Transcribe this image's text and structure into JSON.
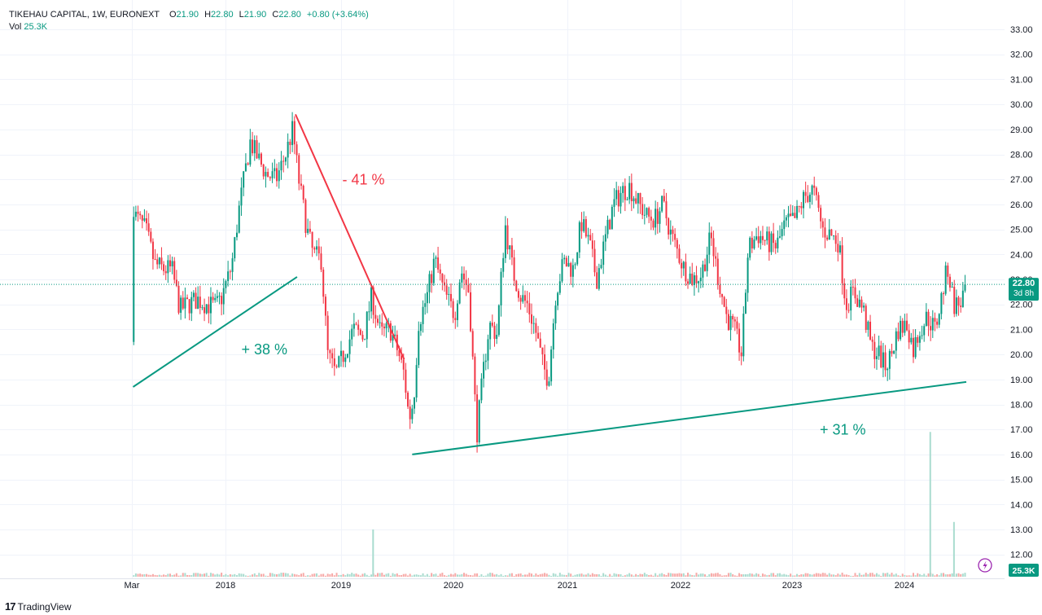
{
  "header": {
    "symbol": "TIKEHAU CAPITAL, 1W, EURONEXT",
    "o_label": "O",
    "o": "21.90",
    "h_label": "H",
    "h": "22.80",
    "l_label": "L",
    "l": "21.90",
    "c_label": "C",
    "c": "22.80",
    "change": "+0.80 (+3.64%)",
    "vol_label": "Vol",
    "vol": "25.3K"
  },
  "price_badge": {
    "price": "22.80",
    "countdown": "3d 8h"
  },
  "volume_badge": "25.3K",
  "footer": {
    "logo": "17",
    "brand": "TradingView"
  },
  "colors": {
    "up": "#089981",
    "down": "#f23645",
    "up_vol": "#a9dccf",
    "down_vol": "#f7a9a7",
    "grid": "#f0f3fa",
    "axis_text": "#131722",
    "lightning": "#9c27b0"
  },
  "chart_data": {
    "type": "candlestick",
    "interval": "1W",
    "ylim": [
      11.5,
      33.3
    ],
    "y_ticks": [
      "33.00",
      "32.00",
      "31.00",
      "30.00",
      "29.00",
      "28.00",
      "27.00",
      "26.00",
      "25.00",
      "24.00",
      "23.00",
      "22.00",
      "21.00",
      "20.00",
      "19.00",
      "18.00",
      "17.00",
      "16.00",
      "15.00",
      "14.00",
      "13.00",
      "12.00"
    ],
    "x_ticks": [
      "Mar",
      "2018",
      "2019",
      "2020",
      "2021",
      "2022",
      "2023",
      "2024"
    ],
    "x_tick_dates": [
      "2017-03-01",
      "2018-01-01",
      "2019-01-01",
      "2020-01-01",
      "2021-01-01",
      "2022-01-01",
      "2023-01-01",
      "2024-01-01"
    ],
    "x_range": [
      "2017-03-01",
      "2024-08-01"
    ],
    "last_close": 22.8,
    "price_path": [
      [
        "2017-03-07",
        20.5
      ],
      [
        "2017-03-14",
        25.5
      ],
      [
        "2017-04-15",
        25.0
      ],
      [
        "2017-05-15",
        23.6
      ],
      [
        "2017-06-15",
        23.4
      ],
      [
        "2017-07-10",
        23.4
      ],
      [
        "2017-08-05",
        21.8
      ],
      [
        "2017-09-01",
        22.0
      ],
      [
        "2017-10-01",
        22.2
      ],
      [
        "2017-11-01",
        22.0
      ],
      [
        "2017-12-01",
        21.9
      ],
      [
        "2017-12-20",
        22.3
      ],
      [
        "2018-01-20",
        23.5
      ],
      [
        "2018-02-15",
        26.0
      ],
      [
        "2018-03-20",
        28.5
      ],
      [
        "2018-04-15",
        27.8
      ],
      [
        "2018-05-10",
        27.2
      ],
      [
        "2018-06-10",
        27.0
      ],
      [
        "2018-07-10",
        28.0
      ],
      [
        "2018-08-01",
        29.0
      ],
      [
        "2018-08-20",
        27.0
      ],
      [
        "2018-09-15",
        25.0
      ],
      [
        "2018-10-05",
        24.0
      ],
      [
        "2018-10-30",
        23.8
      ],
      [
        "2018-11-20",
        20.0
      ],
      [
        "2018-12-15",
        19.2
      ],
      [
        "2019-01-15",
        20.2
      ],
      [
        "2019-02-10",
        21.0
      ],
      [
        "2019-03-15",
        20.7
      ],
      [
        "2019-04-10",
        22.3
      ],
      [
        "2019-05-10",
        20.8
      ],
      [
        "2019-06-10",
        21.0
      ],
      [
        "2019-07-05",
        20.1
      ],
      [
        "2019-07-25",
        19.2
      ],
      [
        "2019-08-10",
        17.4
      ],
      [
        "2019-08-25",
        18.2
      ],
      [
        "2019-09-10",
        21.3
      ],
      [
        "2019-10-05",
        22.2
      ],
      [
        "2019-11-01",
        23.8
      ],
      [
        "2019-12-01",
        22.5
      ],
      [
        "2020-01-05",
        21.6
      ],
      [
        "2020-01-25",
        23.4
      ],
      [
        "2020-02-20",
        22.5
      ],
      [
        "2020-03-16",
        16.8
      ],
      [
        "2020-04-05",
        19.2
      ],
      [
        "2020-04-25",
        21.2
      ],
      [
        "2020-05-20",
        20.8
      ],
      [
        "2020-06-15",
        25.2
      ],
      [
        "2020-07-10",
        23.3
      ],
      [
        "2020-08-05",
        22.3
      ],
      [
        "2020-08-25",
        22.0
      ],
      [
        "2020-09-20",
        21.0
      ],
      [
        "2020-10-15",
        19.5
      ],
      [
        "2020-11-01",
        19.0
      ],
      [
        "2020-11-25",
        22.5
      ],
      [
        "2020-12-20",
        23.7
      ],
      [
        "2021-01-20",
        23.4
      ],
      [
        "2021-02-15",
        25.3
      ],
      [
        "2021-03-15",
        24.3
      ],
      [
        "2021-04-05",
        23.0
      ],
      [
        "2021-05-01",
        24.5
      ],
      [
        "2021-05-30",
        26.0
      ],
      [
        "2021-06-25",
        26.5
      ],
      [
        "2021-07-20",
        26.7
      ],
      [
        "2021-08-20",
        26.0
      ],
      [
        "2021-09-15",
        25.5
      ],
      [
        "2021-10-10",
        25.4
      ],
      [
        "2021-11-05",
        26.0
      ],
      [
        "2021-12-01",
        24.8
      ],
      [
        "2022-01-10",
        23.5
      ],
      [
        "2022-02-10",
        23.0
      ],
      [
        "2022-03-10",
        23.2
      ],
      [
        "2022-04-10",
        24.7
      ],
      [
        "2022-05-05",
        23.0
      ],
      [
        "2022-06-01",
        21.5
      ],
      [
        "2022-06-25",
        21.0
      ],
      [
        "2022-07-20",
        20.0
      ],
      [
        "2022-08-10",
        24.2
      ],
      [
        "2022-09-10",
        24.8
      ],
      [
        "2022-10-10",
        24.5
      ],
      [
        "2022-11-10",
        24.3
      ],
      [
        "2022-12-10",
        25.2
      ],
      [
        "2023-01-10",
        25.4
      ],
      [
        "2023-02-10",
        26.3
      ],
      [
        "2023-03-10",
        26.6
      ],
      [
        "2023-04-10",
        25.0
      ],
      [
        "2023-05-05",
        24.8
      ],
      [
        "2023-06-01",
        24.5
      ],
      [
        "2023-06-25",
        22.0
      ],
      [
        "2023-07-20",
        22.5
      ],
      [
        "2023-08-20",
        21.8
      ],
      [
        "2023-09-15",
        20.3
      ],
      [
        "2023-10-10",
        20.0
      ],
      [
        "2023-10-30",
        19.5
      ],
      [
        "2023-11-20",
        20.0
      ],
      [
        "2023-12-10",
        21.0
      ],
      [
        "2024-01-10",
        21.2
      ],
      [
        "2024-01-30",
        20.2
      ],
      [
        "2024-02-20",
        21.0
      ],
      [
        "2024-03-15",
        21.5
      ],
      [
        "2024-04-10",
        21.0
      ],
      [
        "2024-05-01",
        22.3
      ],
      [
        "2024-05-20",
        23.5
      ],
      [
        "2024-06-10",
        22.0
      ],
      [
        "2024-06-30",
        22.0
      ],
      [
        "2024-07-20",
        22.8
      ]
    ],
    "volume_spikes": [
      [
        "2018-08-01",
        1.8
      ],
      [
        "2019-04-15",
        13.0
      ],
      [
        "2024-03-25",
        16.9
      ],
      [
        "2024-06-10",
        13.3
      ]
    ],
    "trendlines": [
      {
        "label": "+ 38 %",
        "color": "up",
        "from": [
          "2017-03-05",
          18.7
        ],
        "to": [
          "2018-08-15",
          23.1
        ]
      },
      {
        "label": "- 41 %",
        "color": "down",
        "from": [
          "2018-08-10",
          29.6
        ],
        "to": [
          "2019-07-25",
          19.8
        ]
      },
      {
        "label": "+ 31 %",
        "color": "up",
        "from": [
          "2019-08-20",
          16.0
        ],
        "to": [
          "2024-07-20",
          18.9
        ]
      }
    ],
    "annotations": [
      {
        "text": "+ 38 %",
        "color": "up",
        "at": [
          "2018-02-20",
          20.0
        ]
      },
      {
        "text": "- 41 %",
        "color": "down",
        "at": [
          "2019-01-05",
          26.8
        ]
      },
      {
        "text": "+ 31 %",
        "color": "up",
        "at": [
          "2023-04-01",
          16.8
        ]
      }
    ]
  }
}
